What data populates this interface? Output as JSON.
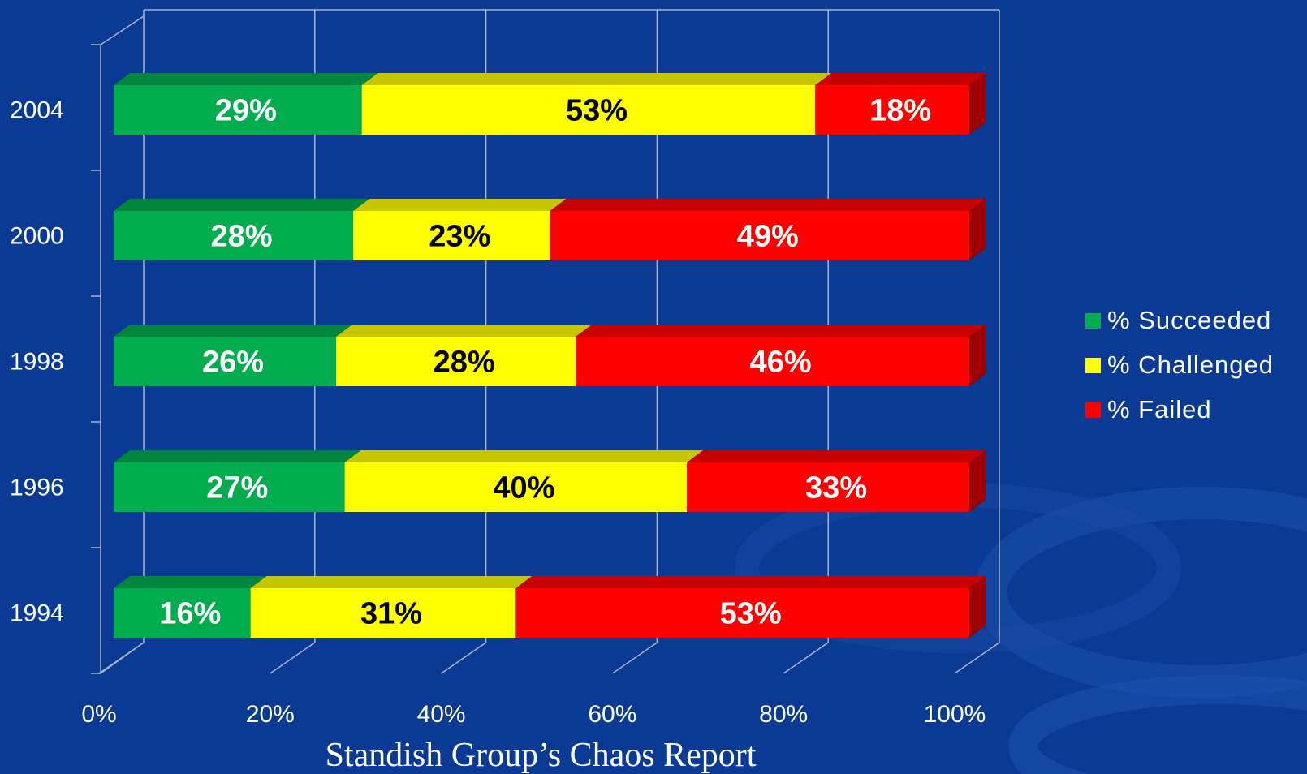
{
  "chart_data": {
    "type": "bar",
    "orientation": "horizontal",
    "stacked": "percent",
    "categories": [
      "1994",
      "1996",
      "1998",
      "2000",
      "2004"
    ],
    "series": [
      {
        "name": "% Succeeded",
        "color": "#00ac4e",
        "values": [
          16,
          27,
          26,
          28,
          29
        ]
      },
      {
        "name": "% Challenged",
        "color": "#ffff00",
        "values": [
          31,
          40,
          28,
          23,
          53
        ]
      },
      {
        "name": "% Failed",
        "color": "#ff0000",
        "values": [
          53,
          33,
          46,
          49,
          18
        ]
      }
    ],
    "data_labels": {
      "1994": [
        "16%",
        "31%",
        "53%"
      ],
      "1996": [
        "27%",
        "40%",
        "33%"
      ],
      "1998": [
        "26%",
        "28%",
        "46%"
      ],
      "2000": [
        "28%",
        "23%",
        "49%"
      ],
      "2004": [
        "29%",
        "53%",
        "18%"
      ]
    },
    "label_colors": [
      "#ffffff",
      "#000000",
      "#ffffff"
    ],
    "x_tick_labels": [
      "0%",
      "20%",
      "40%",
      "60%",
      "80%",
      "100%"
    ],
    "xlim": [
      0,
      100
    ],
    "legend_position": "right",
    "grid": true,
    "style": "3d",
    "caption": "Standish Group’s Chaos Report"
  },
  "colors": {
    "background": "#0a3a94",
    "grid": "#a9b3cc"
  }
}
